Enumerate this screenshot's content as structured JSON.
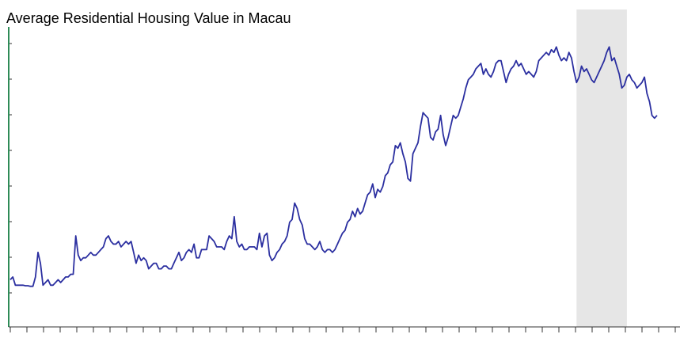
{
  "chart_data": {
    "type": "line",
    "title": "Average Residential Housing Value in Macau",
    "xlabel": "",
    "ylabel": "",
    "ylim": [
      0,
      100
    ],
    "grid": false,
    "legend": "none",
    "x_tick_count": 40,
    "y_tick_count": 8,
    "shaded_period": {
      "start_index": 225,
      "end_index": 245
    },
    "series": [
      {
        "color": "#2b2fa0",
        "values": [
          10,
          11,
          8,
          8,
          8,
          8,
          7.8,
          7.8,
          7.6,
          7.6,
          11,
          20,
          16,
          8,
          9,
          10,
          8,
          8,
          9,
          10,
          9,
          10,
          11,
          11,
          12,
          12,
          26,
          19,
          17,
          18,
          18,
          19,
          20,
          19,
          19,
          20,
          21,
          22,
          25,
          26,
          24,
          23,
          23,
          24,
          22,
          23,
          24,
          23,
          24,
          20,
          16,
          19,
          17,
          18,
          17,
          14,
          15,
          16,
          16,
          14,
          14,
          15,
          15,
          14,
          14,
          16,
          18,
          20,
          17,
          18,
          20,
          21,
          20,
          23,
          18,
          18,
          21,
          21,
          21,
          26,
          25,
          24,
          22,
          22,
          22,
          21,
          24,
          26,
          25,
          33,
          24,
          22,
          23,
          21,
          21,
          22,
          22,
          22,
          21,
          27,
          22,
          26,
          27,
          19,
          17,
          18,
          20,
          21,
          23,
          24,
          26,
          31,
          32,
          38,
          36,
          32,
          30,
          25,
          23,
          23,
          22,
          21,
          22,
          24,
          21,
          20,
          21,
          21,
          20,
          21,
          23,
          25,
          27,
          28,
          31,
          32,
          35,
          33,
          36,
          34,
          35,
          38,
          41,
          42,
          45,
          40,
          43,
          42,
          44,
          48,
          49,
          52,
          53,
          59,
          58,
          60,
          56,
          53,
          47,
          46,
          56,
          58,
          60,
          66,
          71,
          70,
          69,
          62,
          61,
          64,
          65,
          70,
          63,
          59,
          62,
          66,
          70,
          69,
          70,
          73,
          76,
          80,
          83,
          84,
          85,
          87,
          88,
          89,
          85,
          87,
          85,
          84,
          86,
          89,
          90,
          90,
          86,
          82,
          85,
          87,
          88,
          90,
          88,
          89,
          87,
          85,
          86,
          85,
          84,
          86,
          90,
          91,
          92,
          93,
          92,
          94,
          93,
          95,
          92,
          90,
          91,
          90,
          93,
          91,
          86,
          82,
          84,
          88,
          86,
          87,
          85,
          83,
          82,
          84,
          86,
          88,
          90,
          93,
          95,
          90,
          91,
          88,
          85,
          80,
          81,
          84,
          85,
          83,
          82,
          80,
          81,
          82,
          84,
          78,
          75,
          70,
          69,
          70
        ]
      }
    ]
  }
}
